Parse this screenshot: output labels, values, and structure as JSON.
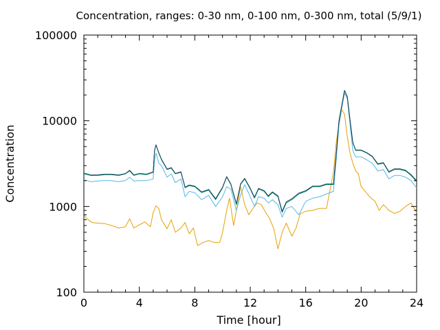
{
  "chart_data": {
    "type": "line",
    "title": "Concentration, ranges: 0-30 nm, 0-100 nm, 0-300 nm, total (5/9/1)",
    "xlabel": "Time [hour]",
    "ylabel": "Concentration",
    "xlim": [
      0,
      24
    ],
    "ylim": [
      100,
      100000
    ],
    "yscale": "log",
    "grid": false,
    "legend": "none",
    "xticks": [
      "0",
      "4",
      "8",
      "12",
      "16",
      "20",
      "24"
    ],
    "yticks": [
      "100",
      "1000",
      "10000",
      "100000"
    ],
    "series": [
      {
        "color": "#e69f00",
        "x": [
          0,
          0.3,
          0.6,
          1,
          1.5,
          2,
          2.5,
          3,
          3.3,
          3.6,
          4,
          4.4,
          4.8,
          5,
          5.2,
          5.4,
          5.6,
          6,
          6.3,
          6.6,
          7,
          7.3,
          7.6,
          7.9,
          8.2,
          8.6,
          9,
          9.4,
          9.8,
          10,
          10.3,
          10.5,
          10.8,
          11,
          11.3,
          11.6,
          11.9,
          12.2,
          12.5,
          12.8,
          13.1,
          13.4,
          13.7,
          14,
          14.3,
          14.6,
          15,
          15.3,
          15.6,
          16,
          16.5,
          17,
          17.5,
          18,
          18.2,
          18.4,
          18.6,
          18.8,
          19,
          19.2,
          19.4,
          19.6,
          19.8,
          20,
          20.3,
          20.6,
          21,
          21.3,
          21.6,
          22,
          22.4,
          22.8,
          23.2,
          23.6,
          24
        ],
        "y": [
          800,
          700,
          650,
          640,
          630,
          600,
          560,
          580,
          720,
          560,
          610,
          660,
          580,
          850,
          1020,
          950,
          700,
          550,
          700,
          500,
          560,
          650,
          480,
          560,
          350,
          380,
          400,
          380,
          380,
          500,
          900,
          1250,
          600,
          900,
          1700,
          1050,
          800,
          950,
          1100,
          1050,
          860,
          720,
          550,
          320,
          500,
          640,
          450,
          560,
          820,
          880,
          900,
          950,
          950,
          2500,
          5500,
          9000,
          13500,
          12000,
          6500,
          4200,
          3200,
          2600,
          2400,
          1700,
          1500,
          1300,
          1150,
          900,
          1050,
          900,
          830,
          880,
          1000,
          1100,
          850
        ]
      },
      {
        "color": "#56b4e9",
        "x": [
          0,
          0.5,
          1,
          1.5,
          2,
          2.5,
          3,
          3.3,
          3.6,
          4,
          4.5,
          5,
          5.1,
          5.2,
          5.4,
          5.6,
          6,
          6.3,
          6.6,
          7,
          7.3,
          7.6,
          8,
          8.5,
          9,
          9.5,
          10,
          10.3,
          10.6,
          11,
          11.3,
          11.6,
          12,
          12.3,
          12.6,
          13,
          13.3,
          13.6,
          14,
          14.3,
          14.6,
          15,
          15.5,
          16,
          16.5,
          17,
          17.5,
          18,
          18.2,
          18.4,
          18.6,
          18.8,
          19,
          19.2,
          19.4,
          19.6,
          20,
          20.4,
          20.8,
          21.2,
          21.6,
          22,
          22.4,
          22.8,
          23.2,
          23.6,
          24
        ],
        "y": [
          2050,
          1950,
          1980,
          2000,
          2000,
          1950,
          2000,
          2200,
          1980,
          2000,
          2000,
          2100,
          3500,
          4200,
          3200,
          3000,
          2200,
          2400,
          1900,
          2100,
          1300,
          1500,
          1450,
          1200,
          1350,
          1000,
          1300,
          1700,
          1600,
          900,
          1350,
          1800,
          1300,
          1000,
          1300,
          1250,
          1100,
          1200,
          1050,
          750,
          950,
          1000,
          800,
          1150,
          1250,
          1300,
          1400,
          1500,
          3500,
          9000,
          14000,
          21000,
          18000,
          9000,
          4500,
          3800,
          3800,
          3500,
          3200,
          2600,
          2700,
          2100,
          2300,
          2300,
          2200,
          2000,
          1650
        ]
      },
      {
        "color": "#009e73",
        "x": [
          0,
          0.5,
          1,
          1.5,
          2,
          2.5,
          3,
          3.3,
          3.6,
          4,
          4.5,
          5,
          5.1,
          5.2,
          5.4,
          5.6,
          6,
          6.3,
          6.6,
          7,
          7.3,
          7.6,
          8,
          8.5,
          9,
          9.5,
          10,
          10.3,
          10.6,
          11,
          11.3,
          11.6,
          12,
          12.3,
          12.6,
          13,
          13.3,
          13.6,
          14,
          14.3,
          14.6,
          15,
          15.5,
          16,
          16.5,
          17,
          17.5,
          18,
          18.2,
          18.4,
          18.6,
          18.8,
          19,
          19.2,
          19.4,
          19.6,
          20,
          20.4,
          20.8,
          21.2,
          21.6,
          22,
          22.4,
          22.8,
          23.2,
          23.6,
          24
        ],
        "y": [
          2400,
          2300,
          2300,
          2350,
          2350,
          2300,
          2400,
          2600,
          2300,
          2400,
          2350,
          2500,
          4500,
          5200,
          4200,
          3500,
          2700,
          2800,
          2400,
          2500,
          1650,
          1750,
          1700,
          1450,
          1550,
          1200,
          1650,
          2200,
          1800,
          1050,
          1800,
          2100,
          1600,
          1250,
          1600,
          1500,
          1300,
          1450,
          1300,
          850,
          1100,
          1200,
          1400,
          1500,
          1700,
          1700,
          1800,
          1800,
          4000,
          10000,
          15000,
          22500,
          19000,
          10000,
          5500,
          4500,
          4500,
          4200,
          3800,
          3100,
          3200,
          2500,
          2700,
          2700,
          2600,
          2300,
          1950
        ]
      },
      {
        "color": "#1c3d5c",
        "x": [
          0,
          0.5,
          1,
          1.5,
          2,
          2.5,
          3,
          3.3,
          3.6,
          4,
          4.5,
          5,
          5.1,
          5.2,
          5.4,
          5.6,
          6,
          6.3,
          6.6,
          7,
          7.3,
          7.6,
          8,
          8.5,
          9,
          9.5,
          10,
          10.3,
          10.6,
          11,
          11.3,
          11.6,
          12,
          12.3,
          12.6,
          13,
          13.3,
          13.6,
          14,
          14.3,
          14.6,
          15,
          15.5,
          16,
          16.5,
          17,
          17.5,
          18,
          18.2,
          18.4,
          18.6,
          18.8,
          19,
          19.2,
          19.4,
          19.6,
          20,
          20.4,
          20.8,
          21.2,
          21.6,
          22,
          22.4,
          22.8,
          23.2,
          23.6,
          24
        ],
        "y": [
          2450,
          2330,
          2340,
          2380,
          2380,
          2330,
          2420,
          2650,
          2330,
          2430,
          2380,
          2530,
          4550,
          5250,
          4250,
          3550,
          2740,
          2840,
          2430,
          2540,
          1680,
          1780,
          1730,
          1480,
          1580,
          1230,
          1680,
          2230,
          1830,
          1080,
          1830,
          2130,
          1630,
          1280,
          1630,
          1530,
          1330,
          1480,
          1330,
          880,
          1130,
          1230,
          1430,
          1530,
          1730,
          1730,
          1830,
          1830,
          4050,
          10100,
          15100,
          22600,
          19100,
          10100,
          5600,
          4550,
          4550,
          4250,
          3850,
          3150,
          3250,
          2550,
          2750,
          2750,
          2650,
          2350,
          2000
        ]
      }
    ]
  }
}
